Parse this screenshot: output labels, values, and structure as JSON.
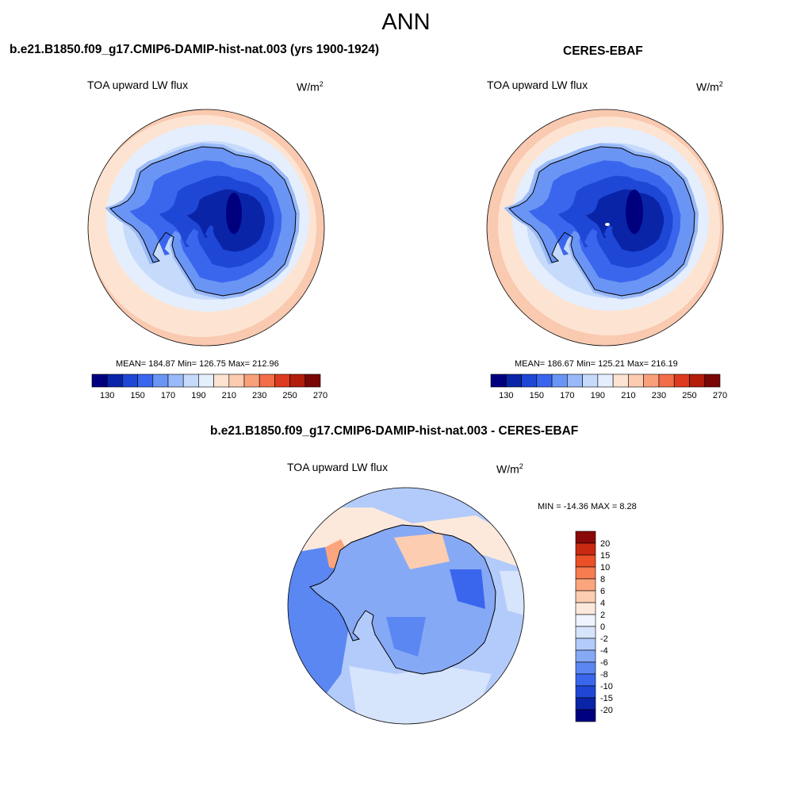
{
  "title": "ANN",
  "colors": {
    "coast": "#000000",
    "abs_scale": [
      "#00007f",
      "#0a24a8",
      "#1e47d6",
      "#3a66ee",
      "#6a95f4",
      "#99b9f8",
      "#c6dafb",
      "#e4eefd",
      "#fde4d2",
      "#fccbb0",
      "#f8a07a",
      "#f26d48",
      "#dc3b1f",
      "#b21d0c",
      "#7a0606"
    ],
    "diff_scale": [
      "#00007f",
      "#0a24a8",
      "#1e47d6",
      "#3a66ee",
      "#5b87f2",
      "#86a9f6",
      "#b2cbfa",
      "#d6e4fc",
      "#eef3fe",
      "#fde9dc",
      "#fccdb0",
      "#fba57e",
      "#f77c50",
      "#ec5027",
      "#c9290f",
      "#8b0808"
    ]
  },
  "panels": [
    {
      "id": "model",
      "title": "b.e21.B1850.f09_g17.CMIP6-DAMIP-hist-nat.003 (yrs 1900-1924)",
      "variable": "TOA upward LW flux",
      "units_base": "W/m",
      "units_exp": "2",
      "stats_text": "MEAN= 184.87  Min= 126.75  Max= 212.96",
      "colorbar_ticks": [
        "130",
        "150",
        "170",
        "190",
        "210",
        "230",
        "250",
        "270"
      ]
    },
    {
      "id": "obs",
      "title": "CERES-EBAF",
      "variable": "TOA upward LW flux",
      "units_base": "W/m",
      "units_exp": "2",
      "stats_text": "MEAN= 186.67  Min= 125.21  Max= 216.19",
      "colorbar_ticks": [
        "130",
        "150",
        "170",
        "190",
        "210",
        "230",
        "250",
        "270"
      ]
    }
  ],
  "difference": {
    "title": "b.e21.B1850.f09_g17.CMIP6-DAMIP-hist-nat.003 - CERES-EBAF",
    "variable": "TOA upward LW flux",
    "units_base": "W/m",
    "units_exp": "2",
    "stats_text": "MIN = -14.36 MAX =   8.28",
    "colorbar_ticks": [
      "20",
      "15",
      "10",
      "8",
      "6",
      "4",
      "2",
      "0",
      "-2",
      "-4",
      "-6",
      "-8",
      "-10",
      "-15",
      "-20"
    ]
  }
}
